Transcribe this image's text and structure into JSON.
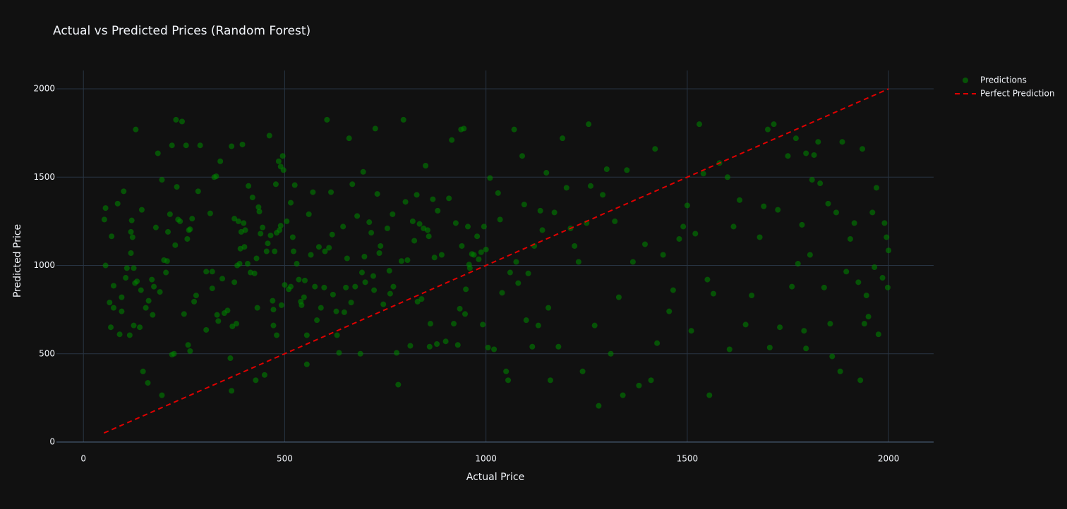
{
  "chart_data": {
    "type": "scatter",
    "title": "Actual vs Predicted Prices (Random Forest)",
    "x_label": "Actual Price",
    "y_label": "Predicted Price",
    "xlim": [
      -67,
      2112
    ],
    "ylim": [
      0,
      2104
    ],
    "xticks": [
      0,
      500,
      1000,
      1500,
      2000
    ],
    "yticks": [
      0,
      500,
      1000,
      1500,
      2000
    ],
    "grid": true,
    "legend": "outside-top-right",
    "series": [
      {
        "name": "Predictions",
        "mode": "markers",
        "color": "#008000",
        "opacity": 0.6,
        "x": [
          52,
          55,
          55,
          65,
          68,
          70,
          75,
          75,
          85,
          90,
          95,
          95,
          100,
          105,
          108,
          115,
          118,
          118,
          120,
          122,
          125,
          125,
          128,
          130,
          133,
          140,
          143,
          145,
          148,
          155,
          160,
          162,
          170,
          172,
          175,
          180,
          185,
          190,
          195,
          195,
          200,
          205,
          208,
          210,
          215,
          220,
          220,
          225,
          228,
          230,
          232,
          235,
          240,
          245,
          250,
          255,
          258,
          260,
          262,
          265,
          265,
          270,
          275,
          280,
          285,
          290,
          305,
          305,
          315,
          320,
          320,
          325,
          330,
          332,
          335,
          340,
          345,
          350,
          358,
          365,
          368,
          368,
          370,
          375,
          375,
          380,
          382,
          385,
          388,
          390,
          392,
          395,
          398,
          400,
          402,
          408,
          410,
          415,
          420,
          425,
          428,
          430,
          432,
          435,
          437,
          440,
          445,
          450,
          455,
          458,
          462,
          465,
          470,
          472,
          472,
          475,
          478,
          480,
          480,
          485,
          487,
          490,
          490,
          492,
          495,
          497,
          500,
          505,
          510,
          515,
          515,
          520,
          522,
          525,
          530,
          535,
          540,
          542,
          548,
          550,
          555,
          555,
          560,
          565,
          570,
          575,
          580,
          585,
          590,
          598,
          600,
          605,
          610,
          615,
          618,
          620,
          628,
          630,
          635,
          645,
          648,
          652,
          655,
          660,
          665,
          668,
          675,
          680,
          688,
          692,
          695,
          698,
          700,
          710,
          715,
          720,
          722,
          725,
          730,
          735,
          738,
          745,
          755,
          760,
          762,
          768,
          770,
          778,
          782,
          790,
          795,
          800,
          805,
          812,
          818,
          822,
          828,
          830,
          835,
          840,
          845,
          850,
          855,
          858,
          860,
          862,
          868,
          872,
          878,
          880,
          890,
          900,
          908,
          915,
          920,
          925,
          930,
          935,
          938,
          940,
          945,
          948,
          950,
          955,
          958,
          960,
          965,
          970,
          978,
          982,
          988,
          992,
          995,
          1000,
          1005,
          1010,
          1020,
          1030,
          1035,
          1040,
          1050,
          1055,
          1060,
          1070,
          1075,
          1080,
          1090,
          1095,
          1100,
          1105,
          1115,
          1120,
          1130,
          1135,
          1140,
          1150,
          1155,
          1160,
          1170,
          1180,
          1190,
          1200,
          1210,
          1220,
          1230,
          1240,
          1250,
          1255,
          1260,
          1270,
          1280,
          1290,
          1300,
          1310,
          1320,
          1330,
          1340,
          1350,
          1365,
          1380,
          1395,
          1410,
          1420,
          1425,
          1440,
          1455,
          1465,
          1480,
          1490,
          1500,
          1510,
          1520,
          1530,
          1540,
          1550,
          1555,
          1565,
          1580,
          1600,
          1605,
          1615,
          1630,
          1645,
          1660,
          1680,
          1690,
          1700,
          1705,
          1715,
          1725,
          1730,
          1750,
          1760,
          1770,
          1775,
          1785,
          1790,
          1795,
          1795,
          1805,
          1810,
          1815,
          1825,
          1830,
          1840,
          1850,
          1855,
          1860,
          1870,
          1880,
          1885,
          1895,
          1905,
          1915,
          1925,
          1930,
          1935,
          1940,
          1945,
          1950,
          1960,
          1965,
          1970,
          1975,
          1985,
          1990,
          1995,
          1998,
          2000
        ],
        "values": [
          1260,
          1325,
          1000,
          790,
          650,
          1165,
          885,
          760,
          1350,
          610,
          740,
          820,
          1420,
          930,
          985,
          605,
          1070,
          1190,
          1255,
          1160,
          660,
          985,
          900,
          1770,
          910,
          650,
          860,
          1315,
          400,
          760,
          335,
          800,
          920,
          720,
          880,
          1215,
          1635,
          850,
          1485,
          265,
          1030,
          960,
          1025,
          1190,
          1290,
          1680,
          495,
          500,
          1115,
          1825,
          1445,
          1260,
          1250,
          1815,
          725,
          1680,
          1150,
          550,
          1200,
          515,
          1205,
          1265,
          795,
          830,
          1420,
          1680,
          965,
          635,
          1295,
          965,
          870,
          1500,
          1505,
          720,
          685,
          1590,
          925,
          730,
          745,
          475,
          1675,
          290,
          655,
          1265,
          905,
          670,
          1000,
          1250,
          1010,
          1095,
          1190,
          1685,
          1240,
          1105,
          1200,
          1010,
          1450,
          960,
          1385,
          955,
          350,
          1040,
          760,
          1330,
          1305,
          1180,
          1215,
          380,
          1080,
          1125,
          1735,
          1170,
          800,
          750,
          660,
          1080,
          1460,
          1185,
          605,
          1590,
          1200,
          1560,
          1225,
          775,
          1620,
          1540,
          890,
          1250,
          865,
          880,
          1355,
          1160,
          1080,
          1455,
          1010,
          920,
          795,
          775,
          820,
          915,
          605,
          440,
          1290,
          1060,
          1415,
          880,
          690,
          1105,
          760,
          875,
          1080,
          1825,
          1100,
          1415,
          1175,
          835,
          740,
          605,
          505,
          1220,
          735,
          875,
          1040,
          1720,
          790,
          1460,
          880,
          1280,
          500,
          960,
          1530,
          1050,
          905,
          1245,
          1185,
          940,
          860,
          1775,
          1405,
          1070,
          1110,
          780,
          1210,
          970,
          840,
          1290,
          880,
          505,
          325,
          1025,
          1825,
          1360,
          1030,
          545,
          1250,
          1140,
          1400,
          795,
          1235,
          810,
          1210,
          1565,
          1200,
          1165,
          540,
          670,
          1375,
          1045,
          555,
          1310,
          1060,
          570,
          1380,
          1710,
          670,
          1240,
          550,
          755,
          1770,
          1110,
          1775,
          725,
          865,
          1220,
          1005,
          985,
          1065,
          1060,
          1165,
          1035,
          1075,
          665,
          1220,
          1090,
          535,
          1495,
          525,
          1410,
          1260,
          845,
          400,
          350,
          960,
          1770,
          1020,
          900,
          1620,
          1345,
          690,
          955,
          540,
          1110,
          660,
          1310,
          1200,
          1525,
          760,
          350,
          1300,
          540,
          1720,
          1440,
          1210,
          1110,
          1020,
          400,
          1240,
          1800,
          1450,
          660,
          205,
          1400,
          1545,
          500,
          1250,
          820,
          265,
          1540,
          1020,
          320,
          1120,
          350,
          1660,
          560,
          1060,
          740,
          860,
          1150,
          1220,
          1340,
          630,
          1180,
          1800,
          1520,
          920,
          265,
          840,
          1580,
          1500,
          525,
          1220,
          1370,
          665,
          830,
          1160,
          1335,
          1770,
          535,
          1800,
          1315,
          650,
          1620,
          880,
          1720,
          1010,
          1230,
          630,
          530,
          1635,
          1060,
          1485,
          1625,
          1700,
          1465,
          875,
          1350,
          670,
          485,
          1300,
          400,
          1700,
          965,
          1150,
          1240,
          905,
          350,
          1660,
          670,
          830,
          710,
          1300,
          990,
          1440,
          610,
          930,
          1240,
          1160,
          875,
          1085
        ]
      },
      {
        "name": "Perfect Prediction",
        "mode": "lines",
        "dash": true,
        "color": "#e00000",
        "x": [
          51,
          2000
        ],
        "values": [
          51,
          2000
        ]
      }
    ]
  }
}
